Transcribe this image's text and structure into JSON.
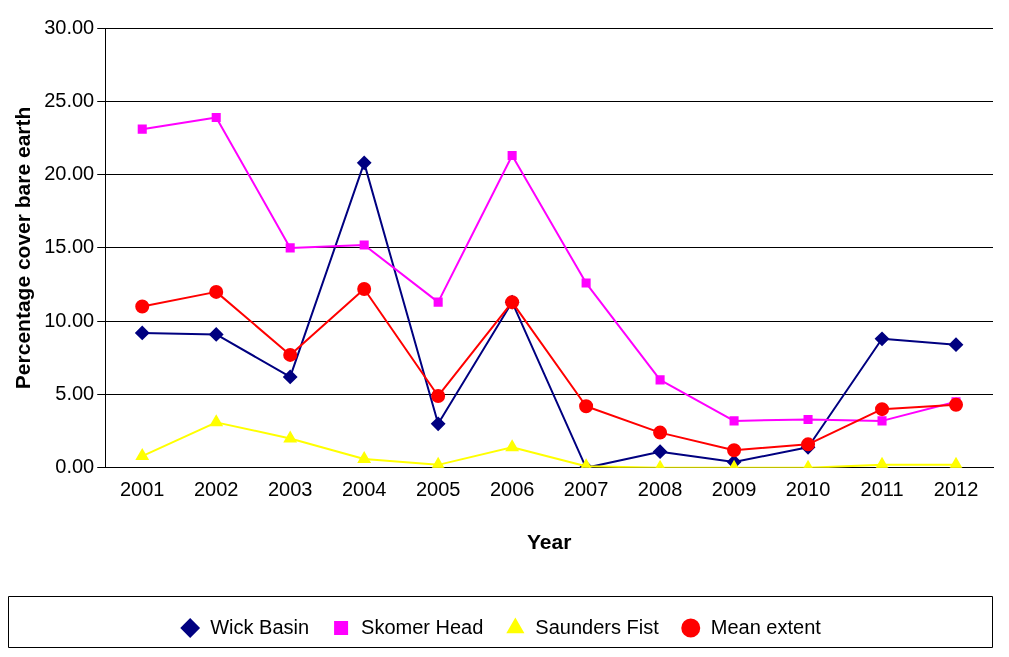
{
  "chart_data": {
    "type": "line",
    "xlabel": "Year",
    "ylabel": "Percentage cover bare earth",
    "categories": [
      "2001",
      "2002",
      "2003",
      "2004",
      "2005",
      "2006",
      "2007",
      "2008",
      "2009",
      "2010",
      "2011",
      "2012"
    ],
    "series": [
      {
        "name": "Wick Basin",
        "color": "#000080",
        "marker": "diamond",
        "values": [
          9.2,
          9.1,
          6.2,
          20.8,
          3.0,
          11.3,
          0.0,
          1.1,
          0.4,
          1.4,
          8.8,
          8.4
        ]
      },
      {
        "name": "Skomer Head",
        "color": "#ff00ff",
        "marker": "square",
        "values": [
          23.1,
          23.9,
          15.0,
          15.2,
          11.3,
          21.3,
          12.6,
          6.0,
          3.2,
          3.3,
          3.2,
          4.5
        ]
      },
      {
        "name": "Saunders Fist",
        "color": "#ffff00",
        "marker": "triangle",
        "values": [
          0.8,
          3.1,
          2.0,
          0.6,
          0.2,
          1.4,
          0.1,
          0.0,
          0.0,
          0.0,
          0.2,
          0.2
        ]
      },
      {
        "name": "Mean extent",
        "color": "#ff0000",
        "marker": "circle",
        "values": [
          11.0,
          12.0,
          7.7,
          12.2,
          4.9,
          11.3,
          4.2,
          2.4,
          1.2,
          1.6,
          4.0,
          4.3
        ]
      }
    ],
    "ylim": [
      0,
      30
    ],
    "yticks": [
      {
        "value": 0,
        "label": "0.00"
      },
      {
        "value": 5,
        "label": "5.00"
      },
      {
        "value": 10,
        "label": "10.00"
      },
      {
        "value": 15,
        "label": "15.00"
      },
      {
        "value": 20,
        "label": "20.00"
      },
      {
        "value": 25,
        "label": "25.00"
      },
      {
        "value": 30,
        "label": "30.00"
      }
    ],
    "grid": "y",
    "legend": "bottom",
    "line_style": "solid"
  }
}
